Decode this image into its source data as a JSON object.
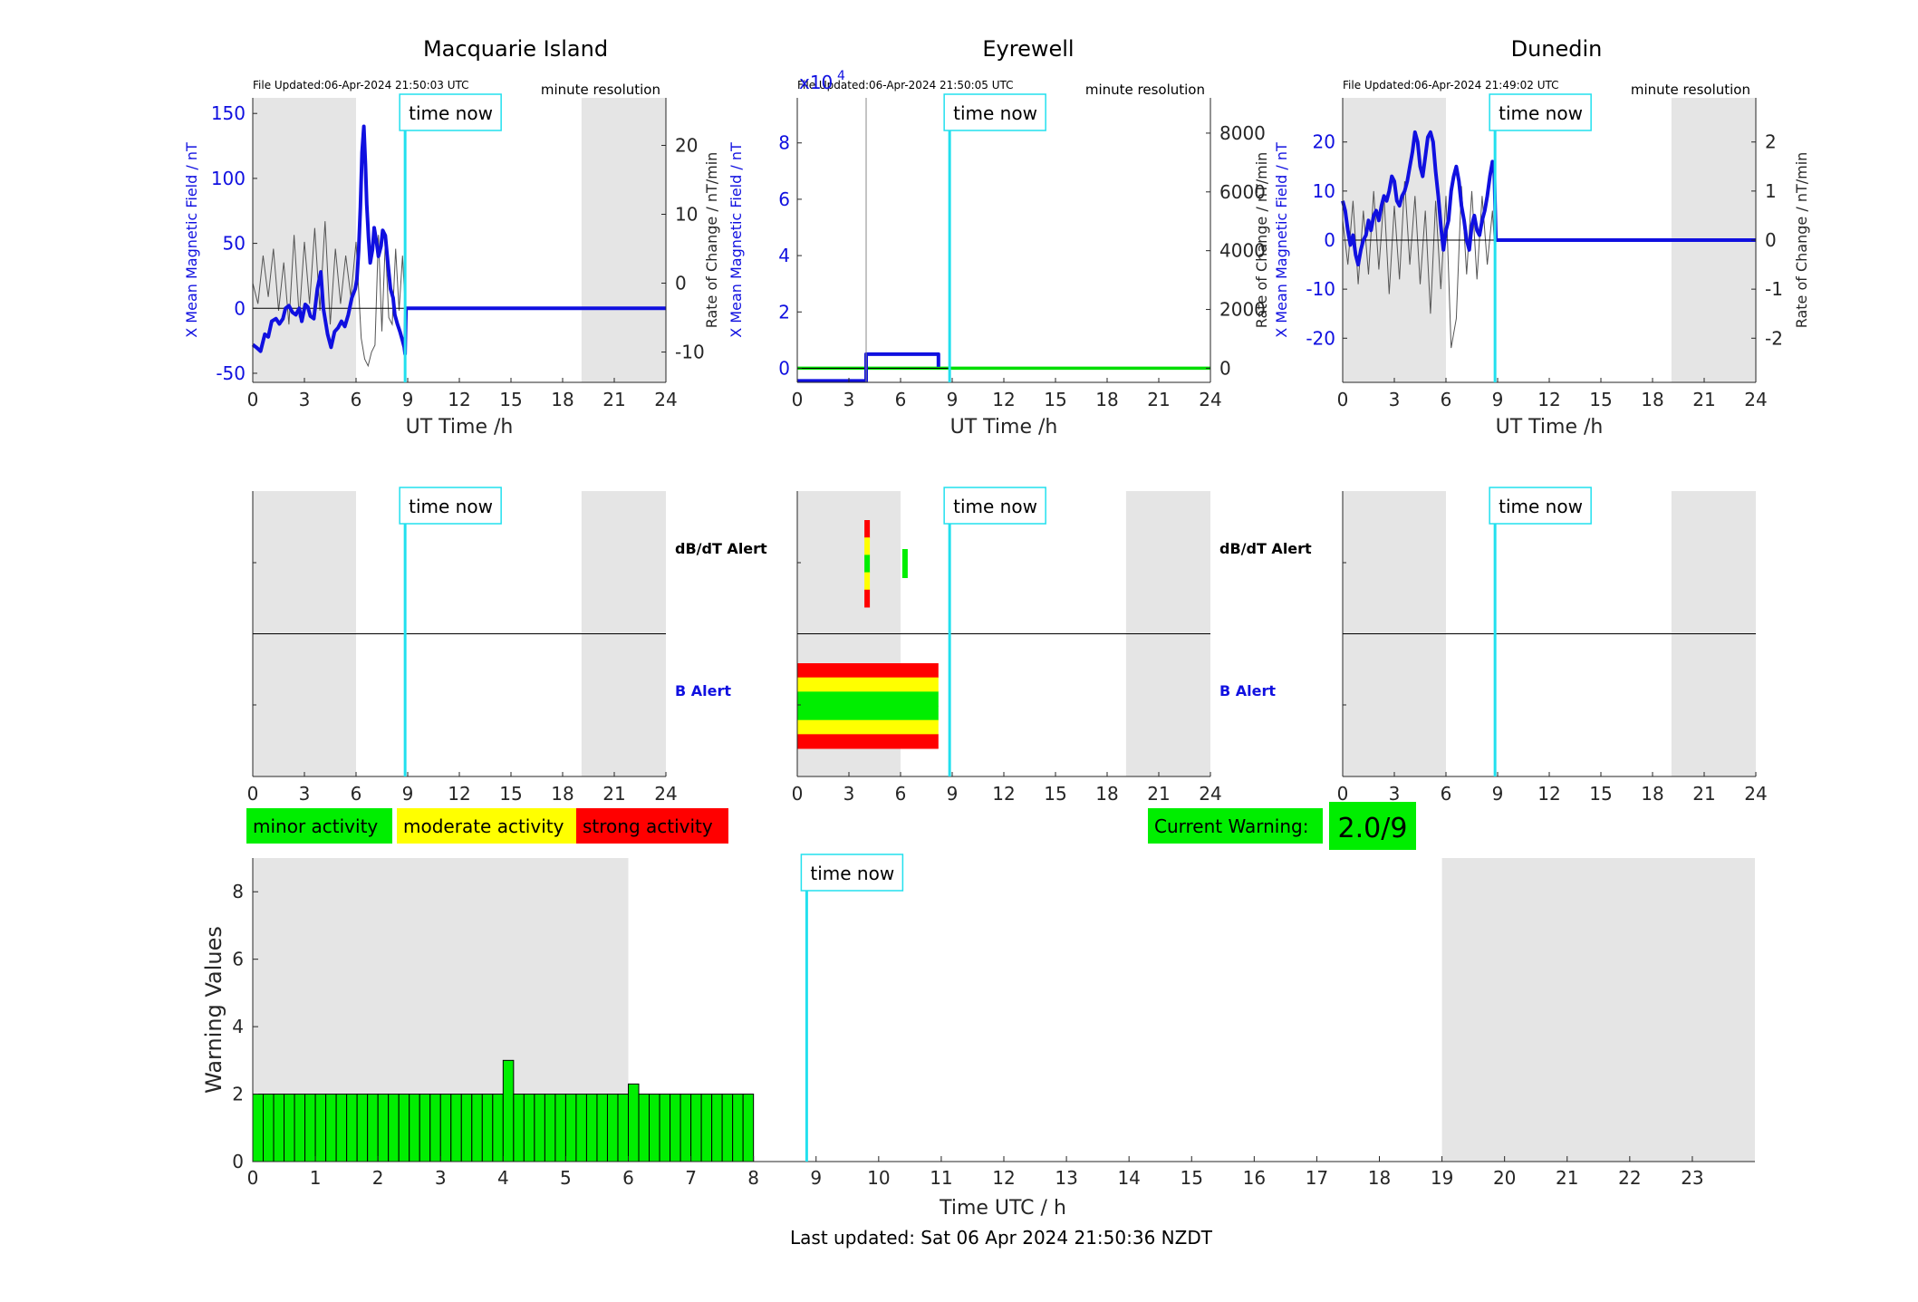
{
  "stations": [
    {
      "name": "Macquarie Island",
      "file_updated": "File Updated:06-Apr-2024 21:50:03 UTC",
      "resolution": "minute resolution",
      "mag_chart": {
        "type": "line",
        "ylabel_left": "X Mean Magnetic Field / nT",
        "ylabel_right": "Rate of Change / nT/min",
        "xlabel": "UT Time /h",
        "xlim": [
          0,
          24
        ],
        "xticks": [
          "0",
          "3",
          "6",
          "9",
          "12",
          "15",
          "18",
          "21",
          "24"
        ],
        "ylim_left": [
          -57,
          162
        ],
        "yticks_left": [
          "-50",
          "0",
          "50",
          "100",
          "150"
        ],
        "ylim_right": [
          -14.4,
          26.9
        ],
        "yticks_right": [
          "-10",
          "0",
          "10",
          "20"
        ],
        "exponent_label": "",
        "night_shading_hours": [
          [
            0,
            6
          ],
          [
            19.1,
            24
          ]
        ],
        "time_now_hour": 8.85,
        "time_now_label": "time now",
        "field_series": {
          "name": "X Mean Magnetic Field",
          "color": "#1010e0",
          "x": [
            0,
            0.2,
            0.45,
            0.7,
            0.9,
            1.1,
            1.35,
            1.55,
            1.75,
            1.9,
            2.1,
            2.3,
            2.5,
            2.7,
            2.85,
            3.05,
            3.2,
            3.35,
            3.55,
            3.75,
            3.95,
            4.1,
            4.35,
            4.55,
            4.75,
            4.95,
            5.15,
            5.35,
            5.55,
            5.75,
            5.95,
            6.05,
            6.15,
            6.25,
            6.35,
            6.45,
            6.55,
            6.62,
            6.72,
            6.82,
            6.95,
            7.05,
            7.2,
            7.3,
            7.45,
            7.55,
            7.7,
            7.85,
            8.0,
            8.15,
            8.25,
            8.4,
            8.55,
            8.7,
            8.8,
            8.85,
            8.9,
            24
          ],
          "y": [
            -28,
            -30,
            -33,
            -20,
            -22,
            -10,
            -8,
            -12,
            -8,
            0,
            2,
            -3,
            -5,
            0,
            -10,
            3,
            1,
            -6,
            -8,
            15,
            28,
            0,
            -20,
            -30,
            -18,
            -15,
            -10,
            -14,
            -5,
            8,
            15,
            22,
            45,
            78,
            120,
            140,
            110,
            80,
            55,
            35,
            45,
            62,
            50,
            40,
            48,
            60,
            56,
            35,
            15,
            8,
            -5,
            -12,
            -18,
            -25,
            -30,
            -35,
            0,
            0
          ]
        },
        "rate_series": {
          "name": "Rate of Change",
          "color": "#555555",
          "x": [
            0,
            0.3,
            0.6,
            0.9,
            1.2,
            1.5,
            1.8,
            2.1,
            2.4,
            2.7,
            3.0,
            3.3,
            3.6,
            3.9,
            4.2,
            4.5,
            4.8,
            5.1,
            5.4,
            5.7,
            6.0,
            6.3,
            6.5,
            6.7,
            6.9,
            7.1,
            7.3,
            7.5,
            7.7,
            7.9,
            8.1,
            8.3,
            8.5,
            8.7,
            8.85
          ],
          "y": [
            0,
            -3,
            4,
            -2,
            5,
            -4,
            3,
            -6,
            7,
            -5,
            6,
            -3,
            8,
            -4,
            9,
            -6,
            5,
            -3,
            4,
            -2,
            6,
            -8,
            -11,
            -12,
            -10,
            -9,
            7,
            -7,
            6,
            -5,
            -6,
            5,
            -4,
            4,
            -3
          ]
        }
      },
      "alerts": {
        "time_now_hour": 8.85,
        "night_shading_hours": [
          [
            0,
            6
          ],
          [
            19.1,
            24
          ]
        ],
        "dbdt_label": "dB/dT Alert",
        "b_label": "B Alert",
        "xticks": [
          "0",
          "3",
          "6",
          "9",
          "12",
          "15",
          "18",
          "21",
          "24"
        ],
        "dbdt_bars": [],
        "b_bars": []
      }
    },
    {
      "name": "Eyrewell",
      "file_updated": "File Updated:06-Apr-2024 21:50:05 UTC",
      "resolution": "minute resolution",
      "mag_chart": {
        "type": "line",
        "ylabel_left": "X Mean Magnetic Field / nT",
        "ylabel_right": "Rate of Change / nT/min",
        "xlabel": "UT Time /h",
        "xlim": [
          0,
          24
        ],
        "xticks": [
          "0",
          "3",
          "6",
          "9",
          "12",
          "15",
          "18",
          "21",
          "24"
        ],
        "ylim_left": [
          -0.5,
          9.6
        ],
        "yticks_left": [
          "0",
          "2",
          "4",
          "6",
          "8"
        ],
        "ylim_right": [
          -480,
          9200
        ],
        "yticks_right": [
          "0",
          "2000",
          "4000",
          "6000",
          "8000"
        ],
        "exponent_label": "x10",
        "exponent_power": "4",
        "night_shading_hours": [],
        "time_now_hour": 8.85,
        "time_now_label": "time now",
        "field_series": {
          "name": "X Mean Magnetic Field",
          "color": "#1010e0",
          "x": [
            0,
            4.0,
            4.0,
            8.2,
            8.2
          ],
          "y": [
            -0.45,
            -0.45,
            0.5,
            0.5,
            0.05
          ]
        },
        "rate_series": {
          "name": "Rate of Change",
          "color": "#00dd00",
          "x": [
            0,
            24
          ],
          "y": [
            0,
            0
          ]
        },
        "spike_hour": 4.0
      },
      "alerts": {
        "time_now_hour": 8.85,
        "night_shading_hours": [
          [
            0,
            6
          ],
          [
            19.1,
            24
          ]
        ],
        "dbdt_label": "dB/dT Alert",
        "b_label": "B Alert",
        "xticks": [
          "0",
          "3",
          "6",
          "9",
          "12",
          "15",
          "18",
          "21",
          "24"
        ],
        "dbdt_bars": [
          {
            "x0": 3.9,
            "x1": 4.2,
            "level_colors": [
              "#00ee00",
              "#ffff00",
              "#ff0000"
            ]
          },
          {
            "x0": 6.1,
            "x1": 6.4,
            "level_colors": [
              "#00ee00"
            ]
          }
        ],
        "b_bars": [
          {
            "x0": 0,
            "x1": 8.2,
            "level_colors": [
              "#00ee00",
              "#ffff00",
              "#ff0000"
            ]
          }
        ]
      }
    },
    {
      "name": "Dunedin",
      "file_updated": "File Updated:06-Apr-2024 21:49:02 UTC",
      "resolution": "minute resolution",
      "mag_chart": {
        "type": "line",
        "ylabel_left": "X Mean Magnetic Field / nT",
        "ylabel_right": "Rate of Change / nT/min",
        "xlabel": "UT Time /h",
        "xlim": [
          0,
          24
        ],
        "xticks": [
          "0",
          "3",
          "6",
          "9",
          "12",
          "15",
          "18",
          "21",
          "24"
        ],
        "ylim_left": [
          -29,
          29
        ],
        "yticks_left": [
          "-20",
          "-10",
          "0",
          "10",
          "20"
        ],
        "ylim_right": [
          -2.9,
          2.9
        ],
        "yticks_right": [
          "-2",
          "-1",
          "0",
          "1",
          "2"
        ],
        "exponent_label": "",
        "night_shading_hours": [
          [
            0,
            6
          ],
          [
            19.1,
            24
          ]
        ],
        "time_now_hour": 8.85,
        "time_now_label": "time now",
        "field_series": {
          "name": "X Mean Magnetic Field",
          "color": "#1010e0",
          "x": [
            0,
            0.15,
            0.3,
            0.45,
            0.6,
            0.75,
            0.9,
            1.05,
            1.2,
            1.35,
            1.5,
            1.65,
            1.8,
            1.95,
            2.1,
            2.25,
            2.4,
            2.55,
            2.7,
            2.85,
            3.0,
            3.15,
            3.3,
            3.45,
            3.6,
            3.75,
            3.9,
            4.05,
            4.2,
            4.35,
            4.5,
            4.65,
            4.8,
            4.95,
            5.1,
            5.25,
            5.4,
            5.55,
            5.7,
            5.85,
            6.0,
            6.15,
            6.3,
            6.45,
            6.6,
            6.75,
            6.9,
            7.05,
            7.2,
            7.35,
            7.5,
            7.65,
            7.8,
            7.95,
            8.1,
            8.25,
            8.4,
            8.55,
            8.7,
            8.8,
            8.9,
            24
          ],
          "y": [
            8,
            6,
            2,
            -1,
            1,
            -3,
            -5,
            -2,
            0,
            1,
            4,
            2,
            5,
            6,
            4,
            7,
            9,
            8,
            10,
            13,
            12,
            8,
            7,
            9,
            10,
            12,
            15,
            18,
            22,
            20,
            15,
            13,
            17,
            21,
            22,
            20,
            14,
            9,
            3,
            -2,
            2,
            4,
            10,
            13,
            15,
            12,
            7,
            4,
            0,
            -2,
            3,
            5,
            2,
            1,
            4,
            6,
            9,
            13,
            16,
            15,
            0,
            0
          ]
        },
        "rate_series": {
          "name": "Rate of Change",
          "color": "#555555",
          "x": [
            0,
            0.3,
            0.6,
            0.9,
            1.2,
            1.5,
            1.8,
            2.1,
            2.4,
            2.7,
            3.0,
            3.3,
            3.6,
            3.9,
            4.2,
            4.5,
            4.8,
            5.1,
            5.4,
            5.7,
            6.0,
            6.3,
            6.6,
            6.9,
            7.2,
            7.5,
            7.8,
            8.1,
            8.4,
            8.7,
            8.85
          ],
          "y": [
            0.4,
            -0.5,
            0.8,
            -0.9,
            0.6,
            -0.7,
            1.0,
            -0.6,
            0.9,
            -1.1,
            0.7,
            -0.8,
            1.2,
            -0.5,
            0.9,
            -0.9,
            0.6,
            -1.5,
            0.8,
            -1.0,
            0.9,
            -2.2,
            -1.6,
            1.1,
            -0.7,
            1.0,
            -0.8,
            0.9,
            -0.5,
            0.6,
            -0.3
          ]
        }
      },
      "alerts": {
        "time_now_hour": 8.85,
        "night_shading_hours": [
          [
            0,
            6
          ],
          [
            19.1,
            24
          ]
        ],
        "dbdt_label": "dB/dT Alert",
        "b_label": "B Alert",
        "xticks": [
          "0",
          "3",
          "6",
          "9",
          "12",
          "15",
          "18",
          "21",
          "24"
        ],
        "dbdt_bars": [],
        "b_bars": []
      }
    }
  ],
  "legend": {
    "minor": "minor activity",
    "moderate": "moderate activity",
    "strong": "strong activity",
    "colors": {
      "minor": "#00ee00",
      "moderate": "#ffff00",
      "strong": "#ff0000"
    }
  },
  "current_warning": {
    "label": "Current Warning:",
    "value": "2.0/9",
    "color": "#00ee00"
  },
  "chart_data": {
    "type": "bar",
    "title": "",
    "xlabel": "Time UTC / h",
    "ylabel": "Warning Values",
    "xlim": [
      0,
      24
    ],
    "ylim": [
      0,
      9
    ],
    "xticks": [
      "0",
      "1",
      "2",
      "3",
      "4",
      "5",
      "6",
      "7",
      "8",
      "9",
      "10",
      "11",
      "12",
      "13",
      "14",
      "15",
      "16",
      "17",
      "18",
      "19",
      "20",
      "21",
      "22",
      "23"
    ],
    "yticks": [
      "0",
      "2",
      "4",
      "6",
      "8"
    ],
    "bar_width_hours": 0.1667,
    "bar_color": "#00ee00",
    "bar_start_hours": [
      0,
      0.1667,
      0.3333,
      0.5,
      0.6667,
      0.8333,
      1.0,
      1.1667,
      1.3333,
      1.5,
      1.6667,
      1.8333,
      2.0,
      2.1667,
      2.3333,
      2.5,
      2.6667,
      2.8333,
      3.0,
      3.1667,
      3.3333,
      3.5,
      3.6667,
      3.8333,
      4.0,
      4.1667,
      4.3333,
      4.5,
      4.6667,
      4.8333,
      5.0,
      5.1667,
      5.3333,
      5.5,
      5.6667,
      5.8333,
      6.0,
      6.1667,
      6.3333,
      6.5,
      6.6667,
      6.8333,
      7.0,
      7.1667,
      7.3333,
      7.5,
      7.6667,
      7.8333
    ],
    "values": [
      2,
      2,
      2,
      2,
      2,
      2,
      2,
      2,
      2,
      2,
      2,
      2,
      2,
      2,
      2,
      2,
      2,
      2,
      2,
      2,
      2,
      2,
      2,
      2,
      3,
      2,
      2,
      2,
      2,
      2,
      2,
      2,
      2,
      2,
      2,
      2,
      2.3,
      2,
      2,
      2,
      2,
      2,
      2,
      2,
      2,
      2,
      2,
      2
    ],
    "night_shading_hours": [
      [
        0,
        6
      ],
      [
        19,
        24
      ]
    ],
    "time_now_hour": 8.85,
    "time_now_label": "time now"
  },
  "footer": {
    "last_updated": "Last updated: Sat 06 Apr 2024 21:50:36 NZDT"
  }
}
